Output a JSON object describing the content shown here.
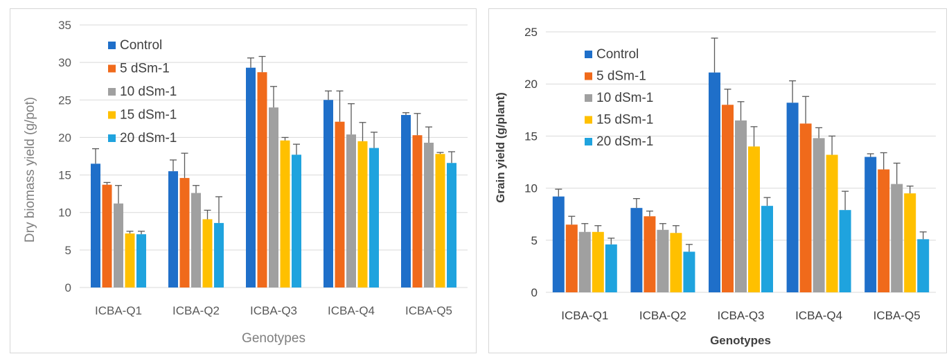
{
  "colors": {
    "Control": "#1f6fc9",
    "5 dSm-1": "#f06a1b",
    "10 dSm-1": "#a0a0a0",
    "15 dSm-1": "#ffc000",
    "20 dSm-1": "#1fa3de",
    "error_bar": "#595959",
    "gridline": "#d9d9d9"
  },
  "chart_data": [
    {
      "type": "bar",
      "categories": [
        "ICBA-Q1",
        "ICBA-Q2",
        "ICBA-Q3",
        "ICBA-Q4",
        "ICBA-Q5"
      ],
      "series": [
        {
          "name": "Control",
          "values": [
            16.5,
            15.5,
            29.3,
            25.0,
            23.0
          ],
          "errors": [
            2.0,
            1.5,
            1.3,
            1.2,
            0.3
          ]
        },
        {
          "name": "5 dSm-1",
          "values": [
            13.7,
            14.6,
            28.7,
            22.1,
            20.3
          ],
          "errors": [
            0.3,
            3.3,
            2.1,
            4.1,
            2.9
          ]
        },
        {
          "name": "10 dSm-1",
          "values": [
            11.2,
            12.6,
            24.0,
            20.4,
            19.3
          ],
          "errors": [
            2.4,
            1.0,
            2.8,
            4.1,
            2.1
          ]
        },
        {
          "name": "15 dSm-1",
          "values": [
            7.2,
            9.1,
            19.6,
            19.5,
            17.8
          ],
          "errors": [
            0.3,
            1.2,
            0.4,
            2.5,
            0.2
          ]
        },
        {
          "name": "20 dSm-1",
          "values": [
            7.1,
            8.6,
            17.7,
            18.6,
            16.6
          ],
          "errors": [
            0.4,
            3.5,
            1.4,
            2.1,
            1.5
          ]
        }
      ],
      "title": "",
      "xlabel": "Genotypes",
      "ylabel": "Dry biomass yield (g/pot)",
      "ylim": [
        0,
        35
      ],
      "yticks": [
        0,
        5,
        10,
        15,
        20,
        25,
        30,
        35
      ],
      "grid": true,
      "legend": "top-left"
    },
    {
      "type": "bar",
      "categories": [
        "ICBA-Q1",
        "ICBA-Q2",
        "ICBA-Q3",
        "ICBA-Q4",
        "ICBA-Q5"
      ],
      "series": [
        {
          "name": "Control",
          "values": [
            9.2,
            8.1,
            21.1,
            18.2,
            13.0
          ],
          "errors": [
            0.7,
            0.9,
            3.3,
            2.1,
            0.3
          ]
        },
        {
          "name": "5 dSm-1",
          "values": [
            6.5,
            7.3,
            18.0,
            16.2,
            11.8
          ],
          "errors": [
            0.8,
            0.5,
            1.5,
            2.6,
            1.6
          ]
        },
        {
          "name": "10 dSm-1",
          "values": [
            5.8,
            6.0,
            16.5,
            14.8,
            10.4
          ],
          "errors": [
            0.8,
            0.6,
            1.8,
            1.0,
            2.0
          ]
        },
        {
          "name": "15 dSm-1",
          "values": [
            5.8,
            5.7,
            14.0,
            13.2,
            9.5
          ],
          "errors": [
            0.6,
            0.7,
            1.9,
            1.8,
            0.7
          ]
        },
        {
          "name": "20 dSm-1",
          "values": [
            4.6,
            3.9,
            8.3,
            7.9,
            5.1
          ],
          "errors": [
            0.6,
            0.7,
            0.8,
            1.8,
            0.7
          ]
        }
      ],
      "title": "",
      "xlabel": "Genotypes",
      "ylabel": "Grain yield (g/plant)",
      "ylim": [
        0,
        25
      ],
      "yticks": [
        0,
        5,
        10,
        15,
        20,
        25
      ],
      "grid": true,
      "legend": "top-left"
    }
  ]
}
